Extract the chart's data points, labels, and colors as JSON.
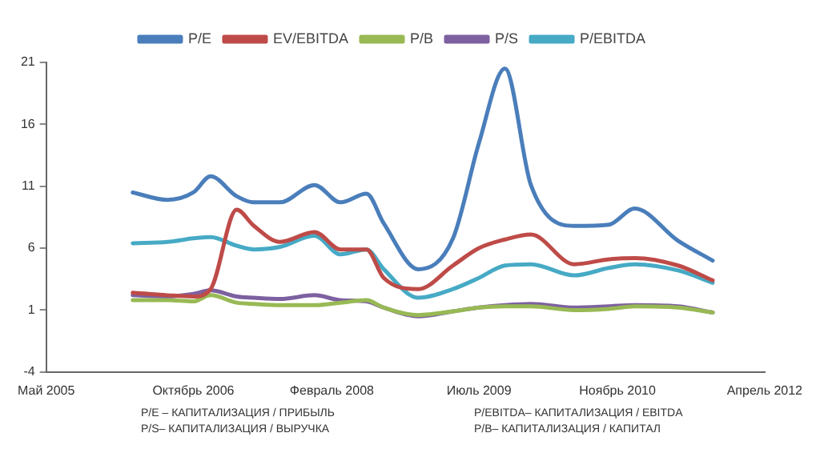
{
  "chart_data": {
    "type": "line",
    "x": [
      "2006-03",
      "2006-07",
      "2006-10",
      "2006-12",
      "2007-03",
      "2007-05",
      "2007-08",
      "2007-12",
      "2008-03",
      "2008-06",
      "2008-08",
      "2008-12",
      "2009-04",
      "2009-07",
      "2009-10",
      "2010-01",
      "2010-06",
      "2010-10",
      "2011-01",
      "2011-06",
      "2011-10"
    ],
    "series": [
      {
        "name": "P/E",
        "color": "#4a7ebb",
        "values": [
          10.5,
          9.9,
          10.5,
          11.8,
          10.2,
          9.7,
          9.7,
          11.1,
          9.7,
          10.4,
          8.0,
          4.3,
          6.8,
          14.5,
          20.5,
          11.1,
          7.8,
          7.9,
          9.2,
          6.6,
          5.0
        ]
      },
      {
        "name": "EV/EBITDA",
        "color": "#be4b48",
        "values": [
          2.4,
          2.2,
          2.1,
          2.7,
          9.1,
          7.8,
          6.5,
          7.3,
          5.9,
          5.9,
          3.6,
          2.7,
          4.6,
          6.0,
          6.7,
          7.1,
          4.7,
          5.1,
          5.2,
          4.6,
          3.4
        ]
      },
      {
        "name": "P/B",
        "color": "#98b954",
        "values": [
          1.8,
          1.8,
          1.7,
          2.2,
          1.6,
          1.5,
          1.4,
          1.4,
          1.6,
          1.8,
          1.2,
          0.6,
          0.9,
          1.2,
          1.3,
          1.3,
          1.0,
          1.1,
          1.3,
          1.2,
          0.8
        ]
      },
      {
        "name": "P/S",
        "color": "#7d60a0",
        "values": [
          2.2,
          2.1,
          2.3,
          2.6,
          2.1,
          2.0,
          1.9,
          2.2,
          1.8,
          1.7,
          1.2,
          0.5,
          0.9,
          1.2,
          1.4,
          1.5,
          1.2,
          1.3,
          1.4,
          1.3,
          0.8
        ]
      },
      {
        "name": "P/EBITDA",
        "color": "#46aac5",
        "values": [
          6.4,
          6.5,
          6.8,
          6.9,
          6.2,
          5.9,
          6.1,
          7.0,
          5.5,
          5.9,
          4.3,
          2.0,
          2.7,
          3.6,
          4.6,
          4.7,
          3.8,
          4.4,
          4.7,
          4.2,
          3.2
        ]
      }
    ],
    "xlim": [
      "2005-05",
      "2012-04"
    ],
    "xticks": [
      {
        "value": "2005-05",
        "label": "Май 2005"
      },
      {
        "value": "2006-10",
        "label": "Октябрь 2006"
      },
      {
        "value": "2008-02",
        "label": "Февраль 2008"
      },
      {
        "value": "2009-07",
        "label": "Июль 2009"
      },
      {
        "value": "2010-11",
        "label": "Ноябрь 2010"
      },
      {
        "value": "2012-04",
        "label": "Апрель 2012"
      }
    ],
    "ylim": [
      -4,
      21
    ],
    "yticks": [
      -4,
      1,
      6,
      11,
      16,
      21
    ],
    "grid": false,
    "legend": "top",
    "marker": "none",
    "line_style": "solid",
    "annotations": [
      "P/E – КАПИТАЛИЗАЦИЯ / ПРИБЫЛЬ",
      "P/EBITDA– КАПИТАЛИЗАЦИЯ / EBITDA",
      "P/S– КАПИТАЛИЗАЦИЯ / ВЫРУЧКА",
      "P/B– КАПИТАЛИЗАЦИЯ / КАПИТАЛ"
    ]
  }
}
